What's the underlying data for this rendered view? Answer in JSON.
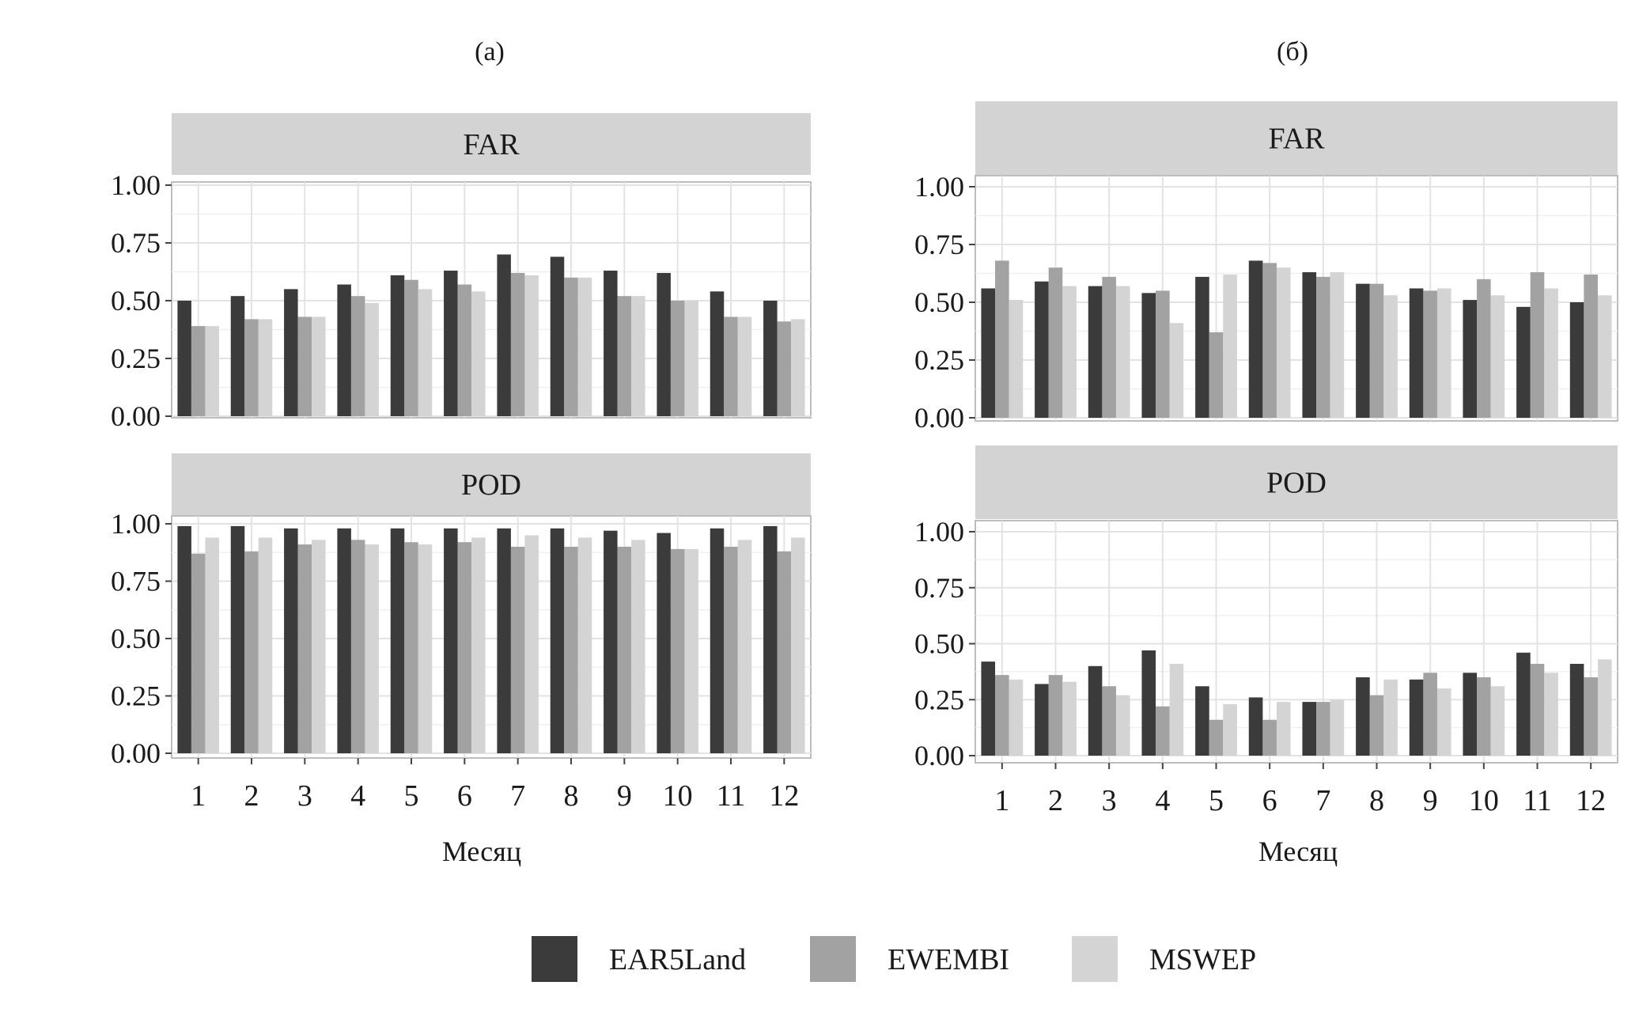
{
  "figure": {
    "x_label": "Месяц",
    "facets": [
      "FAR",
      "POD"
    ],
    "colors": {
      "EAR5Land": "#3b3b3b",
      "EWEMBI": "#a2a2a2",
      "MSWEP": "#d4d4d4"
    },
    "legend": {
      "position": "bottom",
      "items": [
        {
          "name": "EAR5Land",
          "color": "#3b3b3b"
        },
        {
          "name": "EWEMBI",
          "color": "#a2a2a2"
        },
        {
          "name": "MSWEP",
          "color": "#d4d4d4"
        }
      ]
    }
  },
  "chart_data": [
    {
      "type": "bar",
      "panel": "(а)",
      "facet": "FAR",
      "categories": [
        "1",
        "2",
        "3",
        "4",
        "5",
        "6",
        "7",
        "8",
        "9",
        "10",
        "11",
        "12"
      ],
      "ylim": [
        0,
        1.0
      ],
      "yticks": [
        "0.00",
        "0.25",
        "0.50",
        "0.75",
        "1.00"
      ],
      "grid": true,
      "series": [
        {
          "name": "EAR5Land",
          "values": [
            0.5,
            0.52,
            0.55,
            0.57,
            0.61,
            0.63,
            0.7,
            0.69,
            0.63,
            0.62,
            0.54,
            0.5
          ]
        },
        {
          "name": "EWEMBI",
          "values": [
            0.39,
            0.42,
            0.43,
            0.52,
            0.59,
            0.57,
            0.62,
            0.6,
            0.52,
            0.5,
            0.43,
            0.41
          ]
        },
        {
          "name": "MSWEP",
          "values": [
            0.39,
            0.42,
            0.43,
            0.49,
            0.55,
            0.54,
            0.61,
            0.6,
            0.52,
            0.5,
            0.43,
            0.42
          ]
        }
      ]
    },
    {
      "type": "bar",
      "panel": "(а)",
      "facet": "POD",
      "categories": [
        "1",
        "2",
        "3",
        "4",
        "5",
        "6",
        "7",
        "8",
        "9",
        "10",
        "11",
        "12"
      ],
      "ylim": [
        0,
        1.0
      ],
      "yticks": [
        "0.00",
        "0.25",
        "0.50",
        "0.75",
        "1.00"
      ],
      "grid": true,
      "series": [
        {
          "name": "EAR5Land",
          "values": [
            0.99,
            0.99,
            0.98,
            0.98,
            0.98,
            0.98,
            0.98,
            0.98,
            0.97,
            0.96,
            0.98,
            0.99
          ]
        },
        {
          "name": "EWEMBI",
          "values": [
            0.87,
            0.88,
            0.91,
            0.93,
            0.92,
            0.92,
            0.9,
            0.9,
            0.9,
            0.89,
            0.9,
            0.88
          ]
        },
        {
          "name": "MSWEP",
          "values": [
            0.94,
            0.94,
            0.93,
            0.91,
            0.91,
            0.94,
            0.95,
            0.94,
            0.93,
            0.89,
            0.93,
            0.94
          ]
        }
      ]
    },
    {
      "type": "bar",
      "panel": "(б)",
      "facet": "FAR",
      "categories": [
        "1",
        "2",
        "3",
        "4",
        "5",
        "6",
        "7",
        "8",
        "9",
        "10",
        "11",
        "12"
      ],
      "ylim": [
        0,
        1.0
      ],
      "yticks": [
        "0.00",
        "0.25",
        "0.50",
        "0.75",
        "1.00"
      ],
      "grid": true,
      "series": [
        {
          "name": "EAR5Land",
          "values": [
            0.56,
            0.59,
            0.57,
            0.54,
            0.61,
            0.68,
            0.63,
            0.58,
            0.56,
            0.51,
            0.48,
            0.5
          ]
        },
        {
          "name": "EWEMBI",
          "values": [
            0.68,
            0.65,
            0.61,
            0.55,
            0.37,
            0.67,
            0.61,
            0.58,
            0.55,
            0.6,
            0.63,
            0.62
          ]
        },
        {
          "name": "MSWEP",
          "values": [
            0.51,
            0.57,
            0.57,
            0.41,
            0.62,
            0.65,
            0.63,
            0.53,
            0.56,
            0.53,
            0.56,
            0.53
          ]
        }
      ]
    },
    {
      "type": "bar",
      "panel": "(б)",
      "facet": "POD",
      "categories": [
        "1",
        "2",
        "3",
        "4",
        "5",
        "6",
        "7",
        "8",
        "9",
        "10",
        "11",
        "12"
      ],
      "ylim": [
        0,
        1.0
      ],
      "yticks": [
        "0.00",
        "0.25",
        "0.50",
        "0.75",
        "1.00"
      ],
      "grid": true,
      "series": [
        {
          "name": "EAR5Land",
          "values": [
            0.42,
            0.32,
            0.4,
            0.47,
            0.31,
            0.26,
            0.24,
            0.35,
            0.34,
            0.37,
            0.46,
            0.41
          ]
        },
        {
          "name": "EWEMBI",
          "values": [
            0.36,
            0.36,
            0.31,
            0.22,
            0.16,
            0.16,
            0.24,
            0.27,
            0.37,
            0.35,
            0.41,
            0.35
          ]
        },
        {
          "name": "MSWEP",
          "values": [
            0.34,
            0.33,
            0.27,
            0.41,
            0.23,
            0.24,
            0.25,
            0.34,
            0.3,
            0.31,
            0.37,
            0.43
          ]
        }
      ]
    }
  ]
}
